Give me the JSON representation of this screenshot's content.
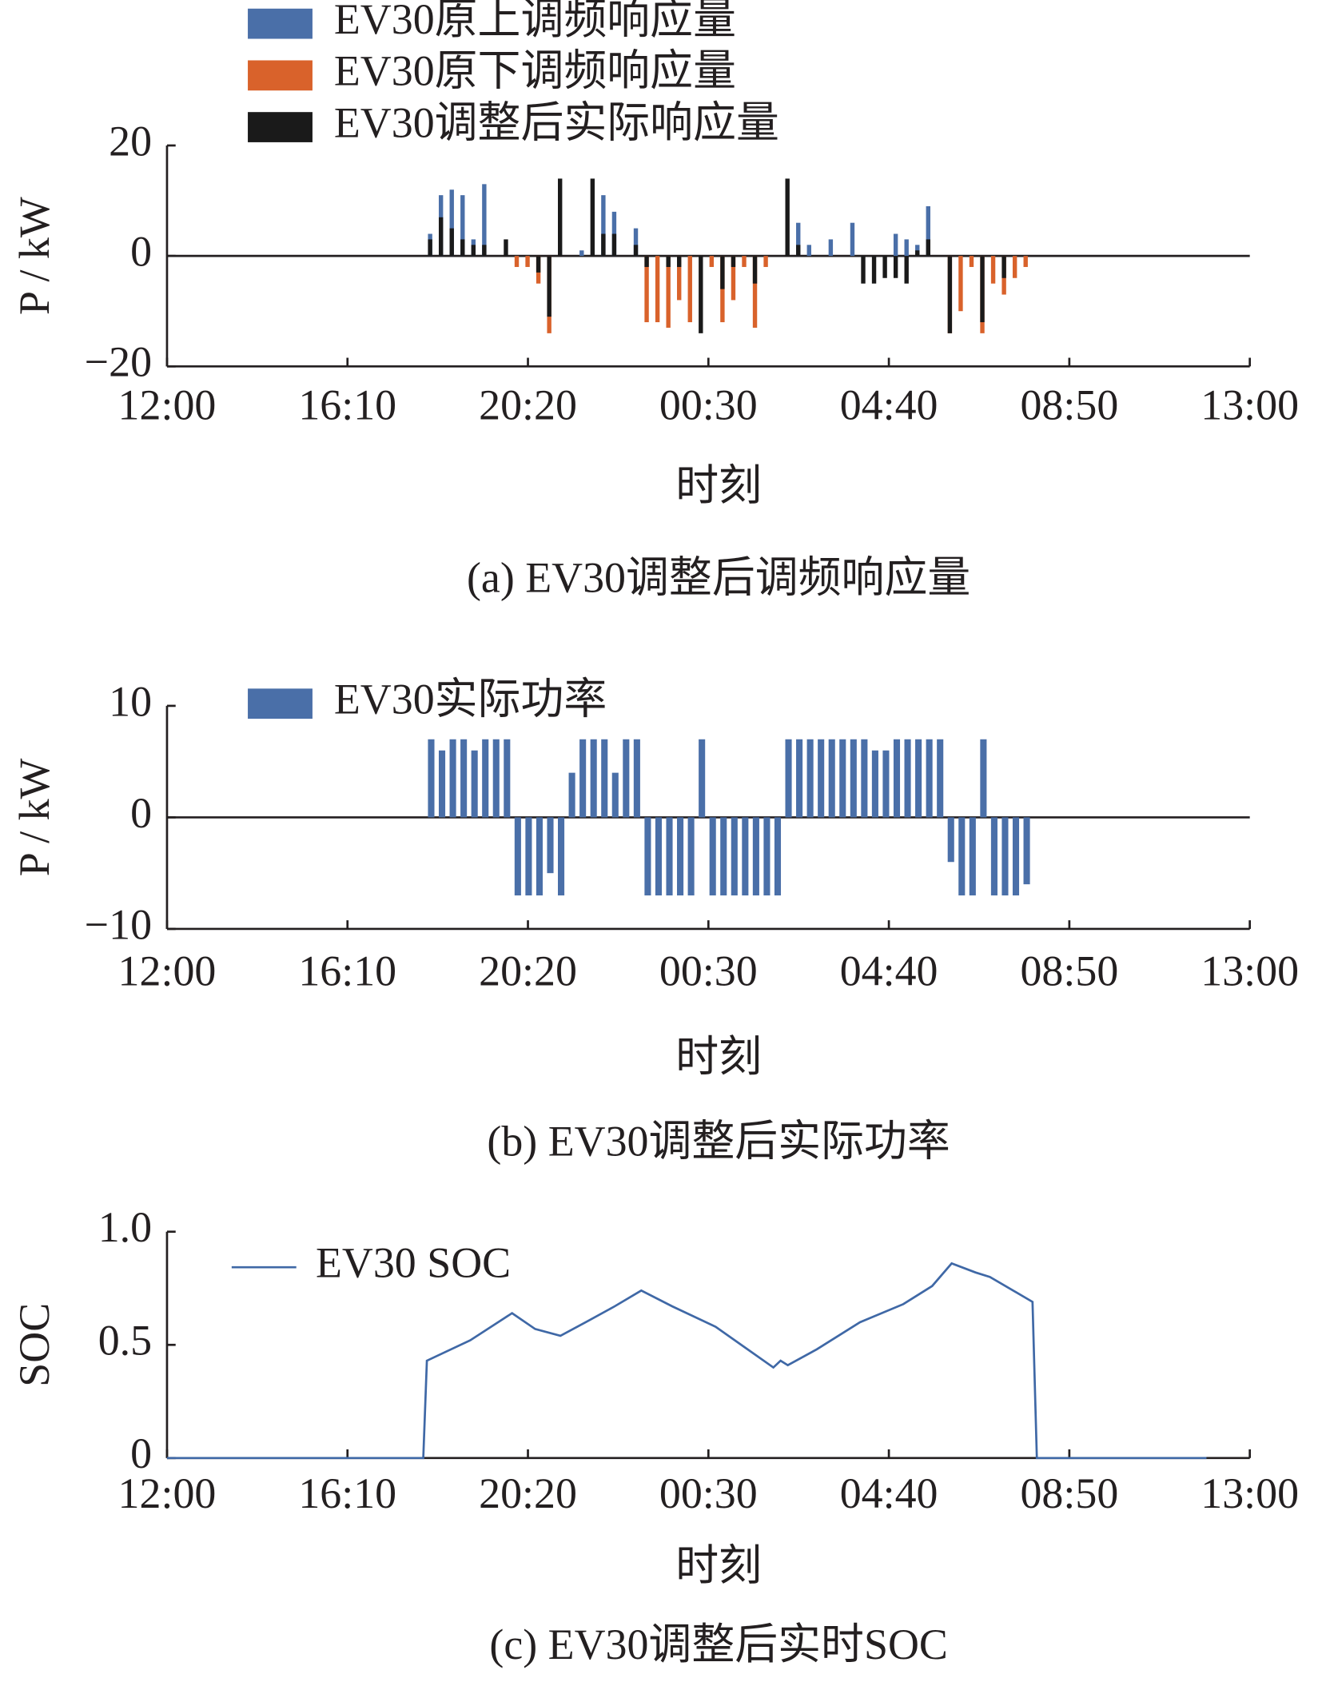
{
  "chart_data": [
    {
      "type": "bar",
      "ylabel": "P / kW",
      "xlabel": "时刻",
      "caption": "(a) EV30调整后调频响应量",
      "x": [
        360,
        375,
        390,
        405,
        420,
        435,
        450,
        465,
        480,
        495,
        510,
        525,
        540,
        555,
        570,
        585,
        600,
        615,
        630,
        645,
        660,
        675,
        690,
        705,
        720,
        735,
        750,
        765,
        780,
        795,
        810,
        825,
        840,
        855,
        870,
        885,
        900,
        915,
        930,
        945,
        960,
        975,
        990,
        1005,
        1020,
        1035,
        1050,
        1065,
        1080,
        1095,
        1110,
        1125,
        1140,
        1155,
        1170,
        1185
      ],
      "series": [
        {
          "name": "EV30原上调频响应量",
          "color": "#4a6fa8",
          "values": [
            4,
            11,
            12,
            11,
            3,
            13,
            0,
            0,
            0,
            0,
            0,
            0,
            0,
            0,
            1,
            0,
            11,
            8,
            0,
            5,
            0,
            0,
            0,
            0,
            0,
            0,
            0,
            0,
            0,
            0,
            0,
            0,
            0,
            0,
            6,
            2,
            0,
            3,
            0,
            6,
            0,
            0,
            0,
            4,
            3,
            2,
            9,
            0,
            0,
            0,
            0,
            0,
            0,
            0,
            0,
            0
          ]
        },
        {
          "name": "EV30原下调频响应量",
          "color": "#d9622b",
          "values": [
            0,
            0,
            0,
            0,
            0,
            0,
            0,
            0,
            -2,
            -2,
            -5,
            -14,
            0,
            0,
            0,
            0,
            0,
            0,
            0,
            0,
            -12,
            -12,
            -13,
            -8,
            -12,
            0,
            -2,
            -12,
            -8,
            -2,
            -13,
            -2,
            0,
            0,
            0,
            0,
            0,
            0,
            0,
            0,
            0,
            0,
            0,
            0,
            0,
            0,
            0,
            0,
            -14,
            -10,
            -2,
            -14,
            -5,
            -7,
            -4,
            -2
          ]
        },
        {
          "name": "EV30调整后实际响应量",
          "color": "#1a1a1a",
          "values": [
            3,
            7,
            5,
            3,
            2,
            2,
            0,
            3,
            0,
            0,
            -3,
            -11,
            14,
            0,
            0,
            14,
            4,
            4,
            0,
            2,
            -2,
            0,
            -2,
            -2,
            0,
            -14,
            0,
            -6,
            -2,
            0,
            -5,
            0,
            0,
            14,
            2,
            0,
            0,
            0,
            0,
            0,
            -5,
            -5,
            -4,
            -4,
            -5,
            1,
            3,
            0,
            -14,
            0,
            0,
            -12,
            0,
            -4,
            0,
            0
          ]
        }
      ],
      "xlim": [
        0,
        1500
      ],
      "xticks": [
        {
          "value": 0,
          "label": "12:00"
        },
        {
          "value": 250,
          "label": "16:10"
        },
        {
          "value": 500,
          "label": "20:20"
        },
        {
          "value": 750,
          "label": "00:30"
        },
        {
          "value": 1000,
          "label": "04:40"
        },
        {
          "value": 1250,
          "label": "08:50"
        },
        {
          "value": 1500,
          "label": "13:00"
        }
      ],
      "ylim": [
        -20,
        20
      ],
      "yticks": [
        {
          "value": -20,
          "label": "−20"
        },
        0,
        20
      ],
      "legend": "upper left"
    },
    {
      "type": "bar",
      "ylabel": "P / kW",
      "xlabel": "时刻",
      "caption": "(b) EV30调整后实际功率",
      "x": [
        360,
        375,
        390,
        405,
        420,
        435,
        450,
        465,
        480,
        495,
        510,
        525,
        540,
        555,
        570,
        585,
        600,
        615,
        630,
        645,
        660,
        675,
        690,
        705,
        720,
        735,
        750,
        765,
        780,
        795,
        810,
        825,
        840,
        855,
        870,
        885,
        900,
        915,
        930,
        945,
        960,
        975,
        990,
        1005,
        1020,
        1035,
        1050,
        1065,
        1080,
        1095,
        1110,
        1125,
        1140,
        1155,
        1170,
        1185
      ],
      "series": [
        {
          "name": "EV30实际功率",
          "color": "#4a6fa8",
          "values": [
            7,
            6,
            7,
            7,
            6,
            7,
            7,
            7,
            -7,
            -7,
            -7,
            -5,
            -7,
            4,
            7,
            7,
            7,
            4,
            7,
            7,
            -7,
            -7,
            -7,
            -7,
            -7,
            7,
            -7,
            -7,
            -7,
            -7,
            -7,
            -7,
            -7,
            7,
            7,
            7,
            7,
            7,
            7,
            7,
            7,
            6,
            6,
            7,
            7,
            7,
            7,
            7,
            -4,
            -7,
            -7,
            7,
            -7,
            -7,
            -7,
            -6
          ]
        }
      ],
      "xlim": [
        0,
        1500
      ],
      "xticks": [
        {
          "value": 0,
          "label": "12:00"
        },
        {
          "value": 250,
          "label": "16:10"
        },
        {
          "value": 500,
          "label": "20:20"
        },
        {
          "value": 750,
          "label": "00:30"
        },
        {
          "value": 1000,
          "label": "04:40"
        },
        {
          "value": 1250,
          "label": "08:50"
        },
        {
          "value": 1500,
          "label": "13:00"
        }
      ],
      "ylim": [
        -10,
        10
      ],
      "yticks": [
        {
          "value": -10,
          "label": "−10"
        },
        0,
        10
      ],
      "legend": "upper left"
    },
    {
      "type": "line",
      "ylabel": "SOC",
      "xlabel": "时刻",
      "caption": "(c) EV30调整后实时SOC",
      "x": [
        0,
        355,
        360,
        380,
        420,
        478,
        510,
        545,
        580,
        620,
        657,
        700,
        760,
        800,
        840,
        850,
        860,
        900,
        960,
        1020,
        1060,
        1087,
        1120,
        1140,
        1199,
        1205,
        1440
      ],
      "series": [
        {
          "name": "EV30 SOC",
          "color": "#3f68a6",
          "values": [
            0,
            0,
            0.43,
            0.46,
            0.52,
            0.64,
            0.57,
            0.54,
            0.6,
            0.67,
            0.74,
            0.67,
            0.58,
            0.49,
            0.4,
            0.43,
            0.41,
            0.48,
            0.6,
            0.68,
            0.76,
            0.86,
            0.82,
            0.8,
            0.69,
            0,
            0
          ]
        }
      ],
      "xlim": [
        0,
        1500
      ],
      "xticks": [
        {
          "value": 0,
          "label": "12:00"
        },
        {
          "value": 250,
          "label": "16:10"
        },
        {
          "value": 500,
          "label": "20:20"
        },
        {
          "value": 750,
          "label": "00:30"
        },
        {
          "value": 1000,
          "label": "04:40"
        },
        {
          "value": 1250,
          "label": "08:50"
        },
        {
          "value": 1500,
          "label": "13:00"
        }
      ],
      "ylim": [
        0,
        1
      ],
      "yticks": [
        0,
        0.5,
        {
          "value": 1,
          "label": "1.0"
        }
      ],
      "legend": "upper left"
    }
  ]
}
